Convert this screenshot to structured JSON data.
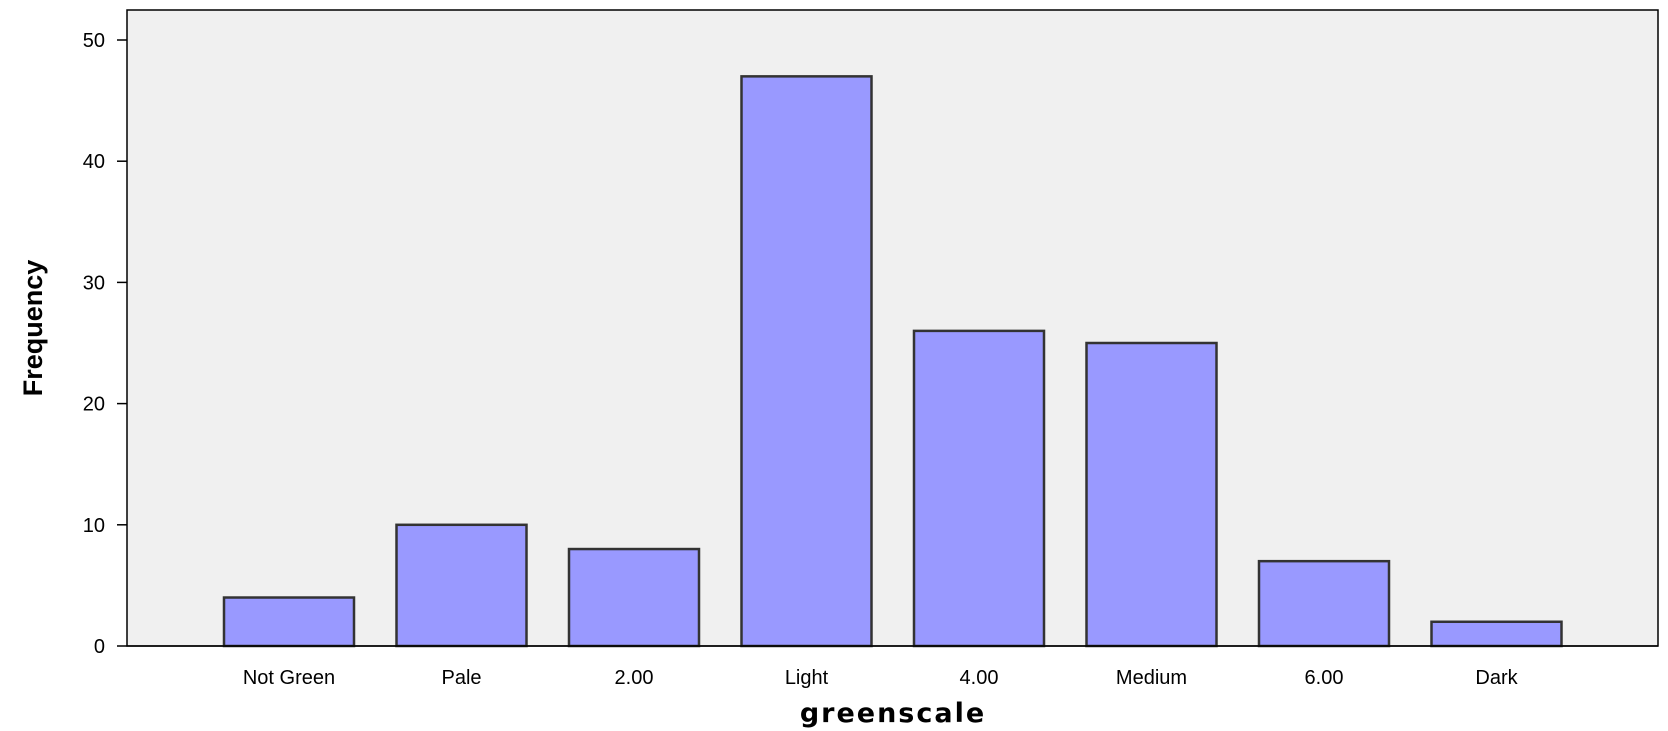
{
  "chart_data": {
    "type": "bar",
    "title": "",
    "xlabel": "greenscale",
    "ylabel": "Frequency",
    "categories": [
      "Not Green",
      "Pale",
      "2.00",
      "Light",
      "4.00",
      "Medium",
      "6.00",
      "Dark"
    ],
    "values": [
      4,
      10,
      8,
      47,
      26,
      25,
      7,
      2
    ],
    "ylim": [
      0,
      52
    ],
    "yticks": [
      "0",
      "10",
      "20",
      "30",
      "40",
      "50"
    ],
    "grid": false,
    "legend": "none",
    "colors": {
      "bar_fill": "#9999ff",
      "bar_stroke": "#333333",
      "plot_background": "#f0f0f0",
      "axis": "#000000"
    }
  }
}
